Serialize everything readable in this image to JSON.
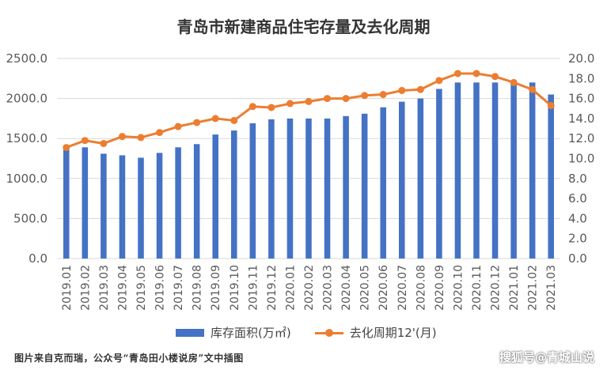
{
  "chart_data": {
    "type": "bar+line",
    "title": "青岛市新建商品住宅存量及去化周期",
    "categories": [
      "2019.01",
      "2019.02",
      "2019.03",
      "2019.04",
      "2019.05",
      "2019.06",
      "2019.07",
      "2019.08",
      "2019.09",
      "2019.10",
      "2019.11",
      "2019.12",
      "2020.01",
      "2020.02",
      "2020.03",
      "2020.04",
      "2020.05",
      "2020.06",
      "2020.07",
      "2020.08",
      "2020.09",
      "2020.10",
      "2020.11",
      "2020.12",
      "2021.01",
      "2021.02",
      "2021.03"
    ],
    "series": [
      {
        "name": "库存面积(万㎡)",
        "type": "bar",
        "axis": "left",
        "color": "#4472c4",
        "values": [
          1360,
          1390,
          1310,
          1290,
          1260,
          1320,
          1390,
          1430,
          1550,
          1600,
          1690,
          1740,
          1750,
          1750,
          1750,
          1780,
          1810,
          1890,
          1960,
          2000,
          2120,
          2200,
          2200,
          2200,
          2180,
          2200,
          2050
        ]
      },
      {
        "name": "去化周期12'(月)",
        "type": "line",
        "axis": "right",
        "color": "#ed7d31",
        "values": [
          11.1,
          11.8,
          11.5,
          12.2,
          12.1,
          12.6,
          13.2,
          13.6,
          14.0,
          13.8,
          15.2,
          15.1,
          15.5,
          15.7,
          16.0,
          16.0,
          16.3,
          16.4,
          16.8,
          16.9,
          17.8,
          18.5,
          18.5,
          18.2,
          17.6,
          16.9,
          15.3
        ]
      }
    ],
    "y_left": {
      "lim": [
        0,
        2500
      ],
      "ticks": [
        "0.0",
        "500.0",
        "1000.0",
        "1500.0",
        "2000.0",
        "2500.0"
      ]
    },
    "y_right": {
      "lim": [
        0,
        20
      ],
      "ticks": [
        "0.0",
        "2.0",
        "4.0",
        "6.0",
        "8.0",
        "10.0",
        "12.0",
        "14.0",
        "16.0",
        "18.0",
        "20.0"
      ]
    },
    "grid": true,
    "legend_position": "bottom"
  },
  "footer": {
    "source": "图片来自克而瑞，公众号“青岛田小楼说房”文中插图",
    "watermark": "搜狐号@青城山说"
  }
}
